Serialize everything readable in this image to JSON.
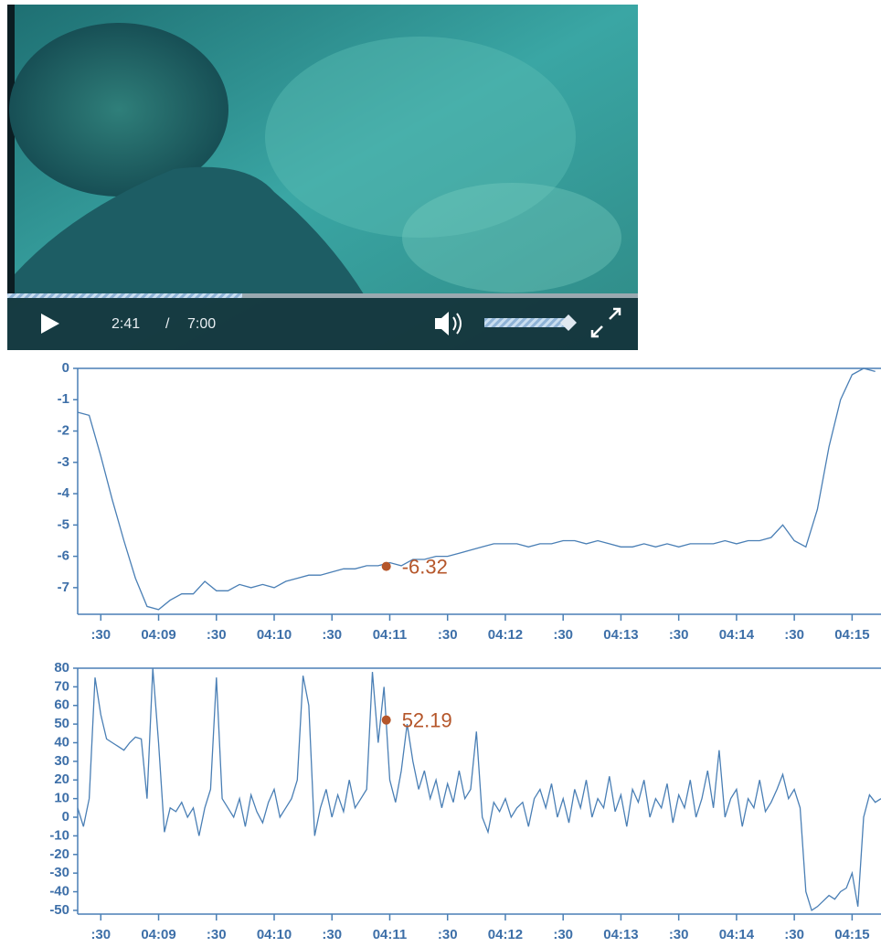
{
  "video": {
    "current_time": "2:41",
    "separator": "/",
    "duration": "7:00"
  },
  "chart_data": [
    {
      "type": "line",
      "x": [
        248.3,
        248.4,
        248.5,
        248.6,
        248.7,
        248.8,
        248.9,
        249.0,
        249.1,
        249.2,
        249.3,
        249.4,
        249.5,
        249.6,
        249.7,
        249.8,
        249.9,
        250.0,
        250.1,
        250.2,
        250.3,
        250.4,
        250.5,
        250.6,
        250.7,
        250.8,
        250.9,
        251.0,
        251.1,
        251.2,
        251.3,
        251.4,
        251.5,
        251.6,
        251.7,
        251.8,
        251.9,
        252.0,
        252.1,
        252.2,
        252.3,
        252.4,
        252.5,
        252.6,
        252.7,
        252.8,
        252.9,
        253.0,
        253.1,
        253.2,
        253.3,
        253.4,
        253.5,
        253.6,
        253.7,
        253.8,
        253.9,
        254.0,
        254.1,
        254.2,
        254.3,
        254.4,
        254.5,
        254.6,
        254.7,
        254.8,
        254.9,
        255.0,
        255.1,
        255.2
      ],
      "series": [
        {
          "color": "#4a7fb5",
          "values": [
            -1.4,
            -1.5,
            -2.8,
            -4.2,
            -5.5,
            -6.7,
            -7.6,
            -7.7,
            -7.4,
            -7.2,
            -7.2,
            -6.8,
            -7.1,
            -7.1,
            -6.9,
            -7.0,
            -6.9,
            -7.0,
            -6.8,
            -6.7,
            -6.6,
            -6.6,
            -6.5,
            -6.4,
            -6.4,
            -6.3,
            -6.3,
            -6.2,
            -6.3,
            -6.1,
            -6.1,
            -6.0,
            -6.0,
            -5.9,
            -5.8,
            -5.7,
            -5.6,
            -5.6,
            -5.6,
            -5.7,
            -5.6,
            -5.6,
            -5.5,
            -5.5,
            -5.6,
            -5.5,
            -5.6,
            -5.7,
            -5.7,
            -5.6,
            -5.7,
            -5.6,
            -5.7,
            -5.6,
            -5.6,
            -5.6,
            -5.5,
            -5.6,
            -5.5,
            -5.5,
            -5.4,
            -5.0,
            -5.5,
            -5.7,
            -4.5,
            -2.5,
            -1.0,
            -0.2,
            0,
            -0.1
          ]
        }
      ],
      "annotations": [
        {
          "x": 250.97,
          "value": -6.32,
          "color": "#b5562a"
        }
      ],
      "xlim": [
        248.3,
        255.25
      ],
      "xticks": [
        {
          "value": 248.5,
          "label": ":30"
        },
        {
          "value": 249,
          "label": "04:09"
        },
        {
          "value": 249.5,
          "label": ":30"
        },
        {
          "value": 250,
          "label": "04:10"
        },
        {
          "value": 250.5,
          "label": ":30"
        },
        {
          "value": 251,
          "label": "04:11"
        },
        {
          "value": 251.5,
          "label": ":30"
        },
        {
          "value": 252,
          "label": "04:12"
        },
        {
          "value": 252.5,
          "label": ":30"
        },
        {
          "value": 253,
          "label": "04:13"
        },
        {
          "value": 253.5,
          "label": ":30"
        },
        {
          "value": 254,
          "label": "04:14"
        },
        {
          "value": 254.5,
          "label": ":30"
        },
        {
          "value": 255,
          "label": "04:15"
        }
      ],
      "ylim": [
        -7.85,
        0
      ],
      "yticks": [
        0,
        -1,
        -2,
        -3,
        -4,
        -5,
        -6,
        -7
      ]
    },
    {
      "type": "line",
      "x": [
        248.3,
        248.35,
        248.4,
        248.45,
        248.5,
        248.55,
        248.6,
        248.65,
        248.7,
        248.75,
        248.8,
        248.85,
        248.9,
        248.95,
        249.0,
        249.05,
        249.1,
        249.15,
        249.2,
        249.25,
        249.3,
        249.35,
        249.4,
        249.45,
        249.5,
        249.55,
        249.6,
        249.65,
        249.7,
        249.75,
        249.8,
        249.85,
        249.9,
        249.95,
        250.0,
        250.05,
        250.1,
        250.15,
        250.2,
        250.25,
        250.3,
        250.35,
        250.4,
        250.45,
        250.5,
        250.55,
        250.6,
        250.65,
        250.7,
        250.75,
        250.8,
        250.85,
        250.9,
        250.95,
        251.0,
        251.05,
        251.1,
        251.15,
        251.2,
        251.25,
        251.3,
        251.35,
        251.4,
        251.45,
        251.5,
        251.55,
        251.6,
        251.65,
        251.7,
        251.75,
        251.8,
        251.85,
        251.9,
        251.95,
        252.0,
        252.05,
        252.1,
        252.15,
        252.2,
        252.25,
        252.3,
        252.35,
        252.4,
        252.45,
        252.5,
        252.55,
        252.6,
        252.65,
        252.7,
        252.75,
        252.8,
        252.85,
        252.9,
        252.95,
        253.0,
        253.05,
        253.1,
        253.15,
        253.2,
        253.25,
        253.3,
        253.35,
        253.4,
        253.45,
        253.5,
        253.55,
        253.6,
        253.65,
        253.7,
        253.75,
        253.8,
        253.85,
        253.9,
        253.95,
        254.0,
        254.05,
        254.1,
        254.15,
        254.2,
        254.25,
        254.3,
        254.35,
        254.4,
        254.45,
        254.5,
        254.55,
        254.6,
        254.65,
        254.7,
        254.75,
        254.8,
        254.85,
        254.9,
        254.95,
        255.0,
        255.05,
        255.1,
        255.15,
        255.2,
        255.25
      ],
      "series": [
        {
          "color": "#4a7fb5",
          "values": [
            5,
            -5,
            10,
            75,
            55,
            42,
            40,
            38,
            36,
            40,
            43,
            42,
            10,
            80,
            40,
            -8,
            5,
            3,
            8,
            0,
            5,
            -10,
            5,
            15,
            75,
            10,
            5,
            0,
            10,
            -5,
            12,
            3,
            -3,
            8,
            15,
            0,
            5,
            10,
            20,
            76,
            60,
            -10,
            5,
            15,
            0,
            12,
            3,
            20,
            5,
            10,
            15,
            78,
            40,
            70,
            20,
            8,
            25,
            50,
            30,
            15,
            25,
            10,
            20,
            5,
            18,
            8,
            25,
            10,
            15,
            46,
            0,
            -8,
            8,
            3,
            10,
            0,
            5,
            8,
            -5,
            10,
            15,
            5,
            18,
            0,
            10,
            -3,
            15,
            5,
            20,
            0,
            10,
            5,
            22,
            3,
            12,
            -5,
            15,
            8,
            20,
            0,
            10,
            5,
            18,
            -3,
            12,
            5,
            20,
            0,
            10,
            25,
            5,
            36,
            0,
            10,
            15,
            -5,
            10,
            5,
            20,
            3,
            8,
            15,
            23,
            10,
            15,
            5,
            -40,
            -50,
            -48,
            -45,
            -42,
            -44,
            -40,
            -38,
            -30,
            -48,
            0,
            12,
            8,
            10
          ]
        }
      ],
      "annotations": [
        {
          "x": 250.97,
          "value": 52.19,
          "color": "#b5562a"
        }
      ],
      "xlim": [
        248.3,
        255.25
      ],
      "xticks": [
        {
          "value": 248.5,
          "label": ":30"
        },
        {
          "value": 249,
          "label": "04:09"
        },
        {
          "value": 249.5,
          "label": ":30"
        },
        {
          "value": 250,
          "label": "04:10"
        },
        {
          "value": 250.5,
          "label": ":30"
        },
        {
          "value": 251,
          "label": "04:11"
        },
        {
          "value": 251.5,
          "label": ":30"
        },
        {
          "value": 252,
          "label": "04:12"
        },
        {
          "value": 252.5,
          "label": ":30"
        },
        {
          "value": 253,
          "label": "04:13"
        },
        {
          "value": 253.5,
          "label": ":30"
        },
        {
          "value": 254,
          "label": "04:14"
        },
        {
          "value": 254.5,
          "label": ":30"
        },
        {
          "value": 255,
          "label": "04:15"
        }
      ],
      "ylim": [
        -52,
        80
      ],
      "yticks": [
        80,
        70,
        60,
        50,
        40,
        30,
        20,
        10,
        0,
        -10,
        -20,
        -30,
        -40,
        -50
      ]
    }
  ]
}
